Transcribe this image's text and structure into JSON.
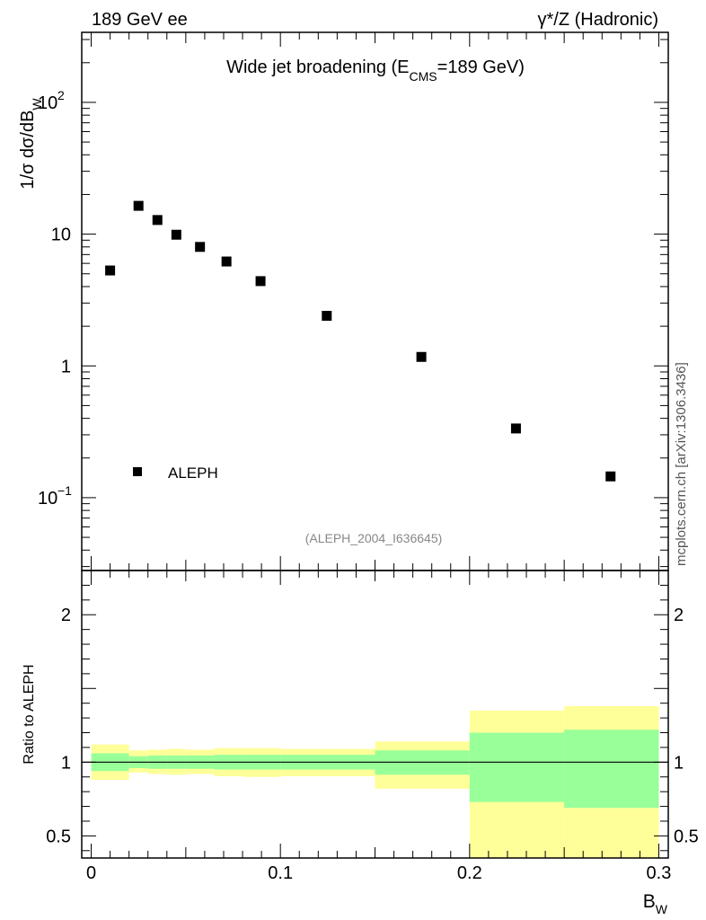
{
  "header": {
    "left": "189 GeV ee",
    "right": "γ*/Z (Hadronic)"
  },
  "watermark": "mcplots.cern.ch [arXiv:1306.3436]",
  "chart_data": [
    {
      "type": "scatter",
      "panel": "main",
      "title": "Wide jet broadening (E_CMS=189 GeV)",
      "title_parts": {
        "pre": "Wide jet broadening (E",
        "sub": "CMS",
        "post": "=189 GeV)"
      },
      "ylabel": "1/σ dσ/dB_W",
      "ylabel_parts": {
        "main": "1/σ  dσ/dB",
        "sub": "W"
      },
      "yscale": "log",
      "ylim": [
        0.028,
        340
      ],
      "xlim": [
        -0.005,
        0.305
      ],
      "y_ticks": [
        {
          "value": 0.1,
          "base": "10",
          "exp": "−1"
        },
        {
          "value": 1,
          "base": "1",
          "exp": ""
        },
        {
          "value": 10,
          "base": "10",
          "exp": ""
        },
        {
          "value": 100,
          "base": "10",
          "exp": "2"
        }
      ],
      "legend": {
        "position": "bottom-left",
        "entries": [
          {
            "label": "ALEPH",
            "marker": "square"
          }
        ]
      },
      "reference_label": "(ALEPH_2004_I636645)",
      "series": [
        {
          "name": "ALEPH",
          "x": [
            0.01,
            0.025,
            0.035,
            0.045,
            0.0575,
            0.0715,
            0.0895,
            0.1245,
            0.1745,
            0.2245,
            0.2745
          ],
          "y": [
            5.3,
            16.4,
            12.8,
            9.9,
            8.0,
            6.2,
            4.4,
            2.4,
            1.17,
            0.335,
            0.145
          ]
        }
      ]
    },
    {
      "type": "area",
      "panel": "ratio",
      "ylabel": "Ratio to ALEPH",
      "xlabel": "B_W",
      "xlabel_parts": {
        "main": "B",
        "sub": "W"
      },
      "ylim": [
        0.35,
        2.3
      ],
      "xlim": [
        -0.005,
        0.305
      ],
      "x_ticks": [
        {
          "value": 0,
          "label": "0"
        },
        {
          "value": 0.1,
          "label": "0.1"
        },
        {
          "value": 0.2,
          "label": "0.2"
        },
        {
          "value": 0.3,
          "label": "0.3"
        }
      ],
      "y_ticks": [
        {
          "value": 0.5,
          "label": "0.5"
        },
        {
          "value": 1,
          "label": "1"
        },
        {
          "value": 2,
          "label": "2"
        }
      ],
      "reference_line": 1.0,
      "bands": [
        {
          "x0": 0.0,
          "x1": 0.02,
          "stat_lo": 0.94,
          "stat_hi": 1.06,
          "tot_lo": 0.88,
          "tot_hi": 1.12
        },
        {
          "x0": 0.02,
          "x1": 0.03,
          "stat_lo": 0.96,
          "stat_hi": 1.04,
          "tot_lo": 0.93,
          "tot_hi": 1.08
        },
        {
          "x0": 0.03,
          "x1": 0.04,
          "stat_lo": 0.955,
          "stat_hi": 1.045,
          "tot_lo": 0.92,
          "tot_hi": 1.085
        },
        {
          "x0": 0.04,
          "x1": 0.05,
          "stat_lo": 0.955,
          "stat_hi": 1.045,
          "tot_lo": 0.915,
          "tot_hi": 1.09
        },
        {
          "x0": 0.05,
          "x1": 0.065,
          "stat_lo": 0.955,
          "stat_hi": 1.045,
          "tot_lo": 0.92,
          "tot_hi": 1.085
        },
        {
          "x0": 0.065,
          "x1": 0.08,
          "stat_lo": 0.95,
          "stat_hi": 1.05,
          "tot_lo": 0.905,
          "tot_hi": 1.095
        },
        {
          "x0": 0.08,
          "x1": 0.1,
          "stat_lo": 0.95,
          "stat_hi": 1.05,
          "tot_lo": 0.9,
          "tot_hi": 1.095
        },
        {
          "x0": 0.1,
          "x1": 0.15,
          "stat_lo": 0.95,
          "stat_hi": 1.05,
          "tot_lo": 0.905,
          "tot_hi": 1.09
        },
        {
          "x0": 0.15,
          "x1": 0.2,
          "stat_lo": 0.915,
          "stat_hi": 1.08,
          "tot_lo": 0.82,
          "tot_hi": 1.14
        },
        {
          "x0": 0.2,
          "x1": 0.25,
          "stat_lo": 0.73,
          "stat_hi": 1.2,
          "tot_lo": 0.35,
          "tot_hi": 1.35
        },
        {
          "x0": 0.25,
          "x1": 0.3,
          "stat_lo": 0.69,
          "stat_hi": 1.22,
          "tot_lo": 0.35,
          "tot_hi": 1.38
        }
      ],
      "colors": {
        "stat": "#99ff99",
        "total": "#ffff99"
      }
    }
  ]
}
